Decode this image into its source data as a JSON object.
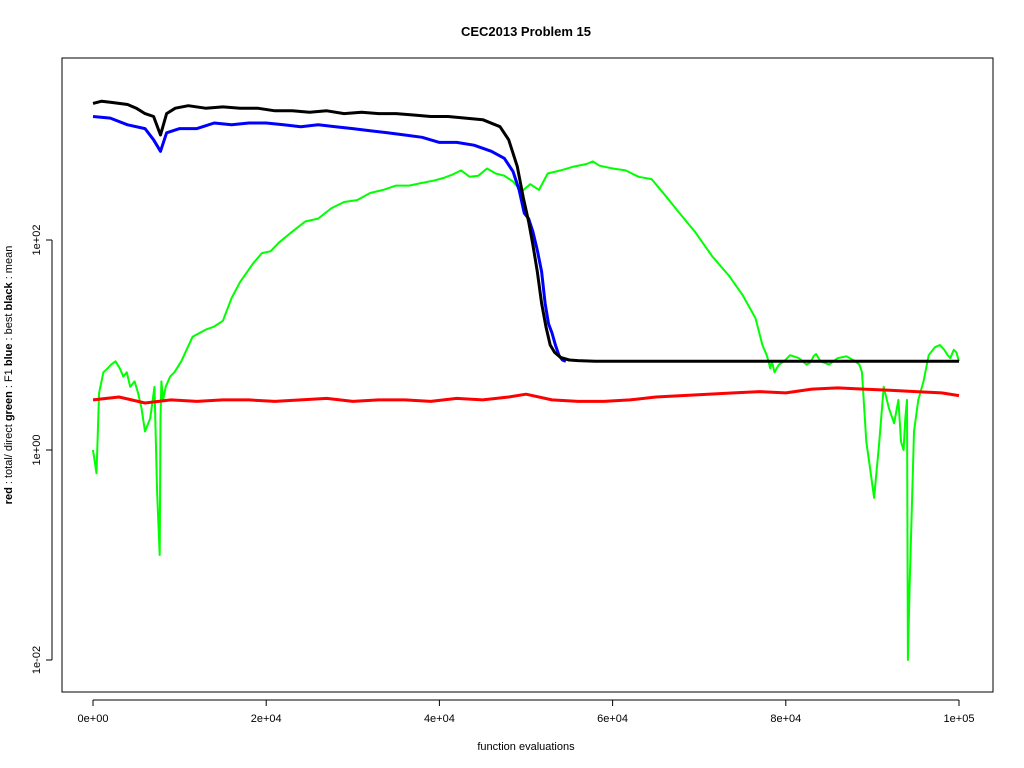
{
  "chart_data": {
    "type": "line",
    "title": "CEC2013 Problem  15",
    "xlabel": "function evaluations",
    "ylabel_parts": [
      {
        "text": "red",
        "bold": true
      },
      {
        "text": " : total/ direct ",
        "bold": false
      },
      {
        "text": "green",
        "bold": true
      },
      {
        "text": " : F1 ",
        "bold": false
      },
      {
        "text": "blue",
        "bold": true
      },
      {
        "text": " : best ",
        "bold": false
      },
      {
        "text": "black",
        "bold": true
      },
      {
        "text": " : mean",
        "bold": false
      }
    ],
    "xlim": [
      0,
      100000
    ],
    "ylim": [
      0.007,
      2000
    ],
    "log_y": true,
    "x_ticks": [
      0,
      20000,
      40000,
      60000,
      80000,
      100000
    ],
    "x_tick_labels": [
      "0e+00",
      "2e+04",
      "4e+04",
      "6e+04",
      "8e+04",
      "1e+05"
    ],
    "y_ticks": [
      0.01,
      1,
      100
    ],
    "y_tick_labels": [
      "1e-02",
      "1e+00",
      "1e+02"
    ],
    "grid": false,
    "series": [
      {
        "color": "#00ff00",
        "x": [
          0,
          400,
          700,
          1200,
          1700,
          2100,
          2600,
          3100,
          3500,
          3900,
          4300,
          4800,
          5200,
          5600,
          6000,
          6600,
          7100,
          7400,
          7700,
          7800,
          7900,
          8100,
          8400,
          8900,
          9400,
          10200,
          11500,
          13000,
          14000,
          15000,
          16000,
          17000,
          18500,
          19500,
          20500,
          21500,
          23000,
          24500,
          26000,
          27500,
          29000,
          30500,
          32000,
          33500,
          35000,
          36500,
          38000,
          39500,
          40500,
          41500,
          42500,
          43500,
          44500,
          45500,
          46500,
          47500,
          48500,
          49500,
          50500,
          51500,
          52500,
          54000,
          55500,
          57000,
          57700,
          58500,
          60000,
          61500,
          63000,
          64500,
          66000,
          67500,
          69500,
          71500,
          73500,
          75000,
          76500,
          77300,
          77800,
          78000,
          78200,
          78400,
          78700,
          79200,
          79800,
          80500,
          81500,
          82400,
          82800,
          83000,
          83200,
          83500,
          84000,
          85000,
          86000,
          87000,
          88000,
          88500,
          88800,
          89000,
          89300,
          89700,
          90200,
          90800,
          91300,
          91900,
          92500,
          93000,
          93300,
          93600,
          93800,
          94000,
          94100,
          94300,
          94500,
          94800,
          95300,
          95900,
          96500,
          97200,
          97800,
          98300,
          98700,
          99000,
          99400,
          99700,
          100000
        ],
        "y": [
          1.0,
          0.6,
          3.5,
          5.5,
          6.0,
          6.5,
          7.0,
          6.0,
          5.0,
          5.5,
          4.0,
          4.5,
          3.5,
          2.5,
          1.5,
          2.0,
          4.0,
          0.4,
          0.1,
          2.0,
          4.5,
          3.0,
          4.0,
          5.0,
          5.5,
          7.0,
          12,
          14,
          15,
          17,
          28,
          40,
          60,
          75,
          78,
          95,
          120,
          150,
          160,
          200,
          230,
          240,
          280,
          300,
          330,
          330,
          350,
          370,
          390,
          420,
          460,
          400,
          410,
          480,
          430,
          410,
          360,
          290,
          340,
          300,
          430,
          460,
          500,
          530,
          560,
          510,
          480,
          460,
          400,
          380,
          270,
          190,
          120,
          70,
          45,
          30,
          18,
          10,
          8,
          7,
          6,
          7,
          5.5,
          6.5,
          7.0,
          8.0,
          7.5,
          6.5,
          6.8,
          7.2,
          7.8,
          8.2,
          7.0,
          6.5,
          7.5,
          7.8,
          7.0,
          6.5,
          5.5,
          3.0,
          1.2,
          0.7,
          0.35,
          1.2,
          4.0,
          2.5,
          1.8,
          3.0,
          1.2,
          1.0,
          2.0,
          3.0,
          0.01,
          0.05,
          0.2,
          1.5,
          3.0,
          4.5,
          8.0,
          9.5,
          10,
          9.0,
          8.0,
          7.5,
          9.0,
          8.5,
          7.0
        ]
      },
      {
        "color": "#0000ff",
        "x": [
          0,
          2000,
          4000,
          6000,
          7000,
          7800,
          8500,
          10000,
          12000,
          14000,
          16000,
          18000,
          20000,
          22000,
          24000,
          26000,
          28000,
          30000,
          32000,
          34000,
          36000,
          38000,
          40000,
          42000,
          44000,
          46000,
          47500,
          48500,
          49200,
          49800,
          50300,
          50800,
          51300,
          51800,
          52200,
          52600,
          53000,
          53400,
          53800,
          54200,
          54600
        ],
        "y": [
          1500,
          1450,
          1250,
          1150,
          900,
          700,
          1050,
          1150,
          1150,
          1300,
          1250,
          1300,
          1300,
          1250,
          1200,
          1250,
          1200,
          1150,
          1100,
          1050,
          1000,
          950,
          850,
          850,
          800,
          700,
          600,
          450,
          300,
          180,
          160,
          120,
          80,
          50,
          25,
          16,
          13,
          10,
          8,
          7.2,
          7.0
        ]
      },
      {
        "color": "#000000",
        "x": [
          0,
          1000,
          2000,
          3000,
          4000,
          5000,
          6000,
          7000,
          7800,
          8500,
          9500,
          11000,
          13000,
          15000,
          17000,
          19000,
          21000,
          23000,
          25000,
          27000,
          29000,
          31000,
          33000,
          35000,
          37000,
          39000,
          41000,
          43000,
          45000,
          47000,
          48000,
          49000,
          49700,
          50300,
          50800,
          51300,
          51800,
          52300,
          52800,
          53300,
          54000,
          55000,
          56000,
          58000,
          60000,
          65000,
          70000,
          75000,
          80000,
          85000,
          90000,
          95000,
          100000
        ],
        "y": [
          2000,
          2100,
          2050,
          2000,
          1950,
          1800,
          1600,
          1500,
          1000,
          1600,
          1800,
          1900,
          1800,
          1850,
          1800,
          1800,
          1700,
          1700,
          1650,
          1700,
          1600,
          1650,
          1600,
          1600,
          1550,
          1500,
          1500,
          1450,
          1400,
          1200,
          900,
          500,
          250,
          150,
          90,
          50,
          25,
          15,
          10,
          8.5,
          7.6,
          7.2,
          7.1,
          7.0,
          7.0,
          7.0,
          7.0,
          7.0,
          7.0,
          7.0,
          7.0,
          7.0,
          7.0
        ]
      },
      {
        "color": "#ff0000",
        "x": [
          0,
          3000,
          6000,
          9000,
          12000,
          15000,
          18000,
          21000,
          24000,
          27000,
          30000,
          33000,
          36000,
          39000,
          42000,
          45000,
          48000,
          50000,
          53000,
          56000,
          59000,
          62000,
          65000,
          68000,
          71000,
          74000,
          77000,
          80000,
          83000,
          86000,
          89000,
          92000,
          95000,
          98000,
          100000
        ],
        "y": [
          3.0,
          3.2,
          2.8,
          3.0,
          2.9,
          3.0,
          3.0,
          2.9,
          3.0,
          3.1,
          2.9,
          3.0,
          3.0,
          2.9,
          3.1,
          3.0,
          3.2,
          3.4,
          3.0,
          2.9,
          2.9,
          3.0,
          3.2,
          3.3,
          3.4,
          3.5,
          3.6,
          3.5,
          3.8,
          3.9,
          3.8,
          3.7,
          3.6,
          3.5,
          3.3
        ]
      }
    ]
  }
}
